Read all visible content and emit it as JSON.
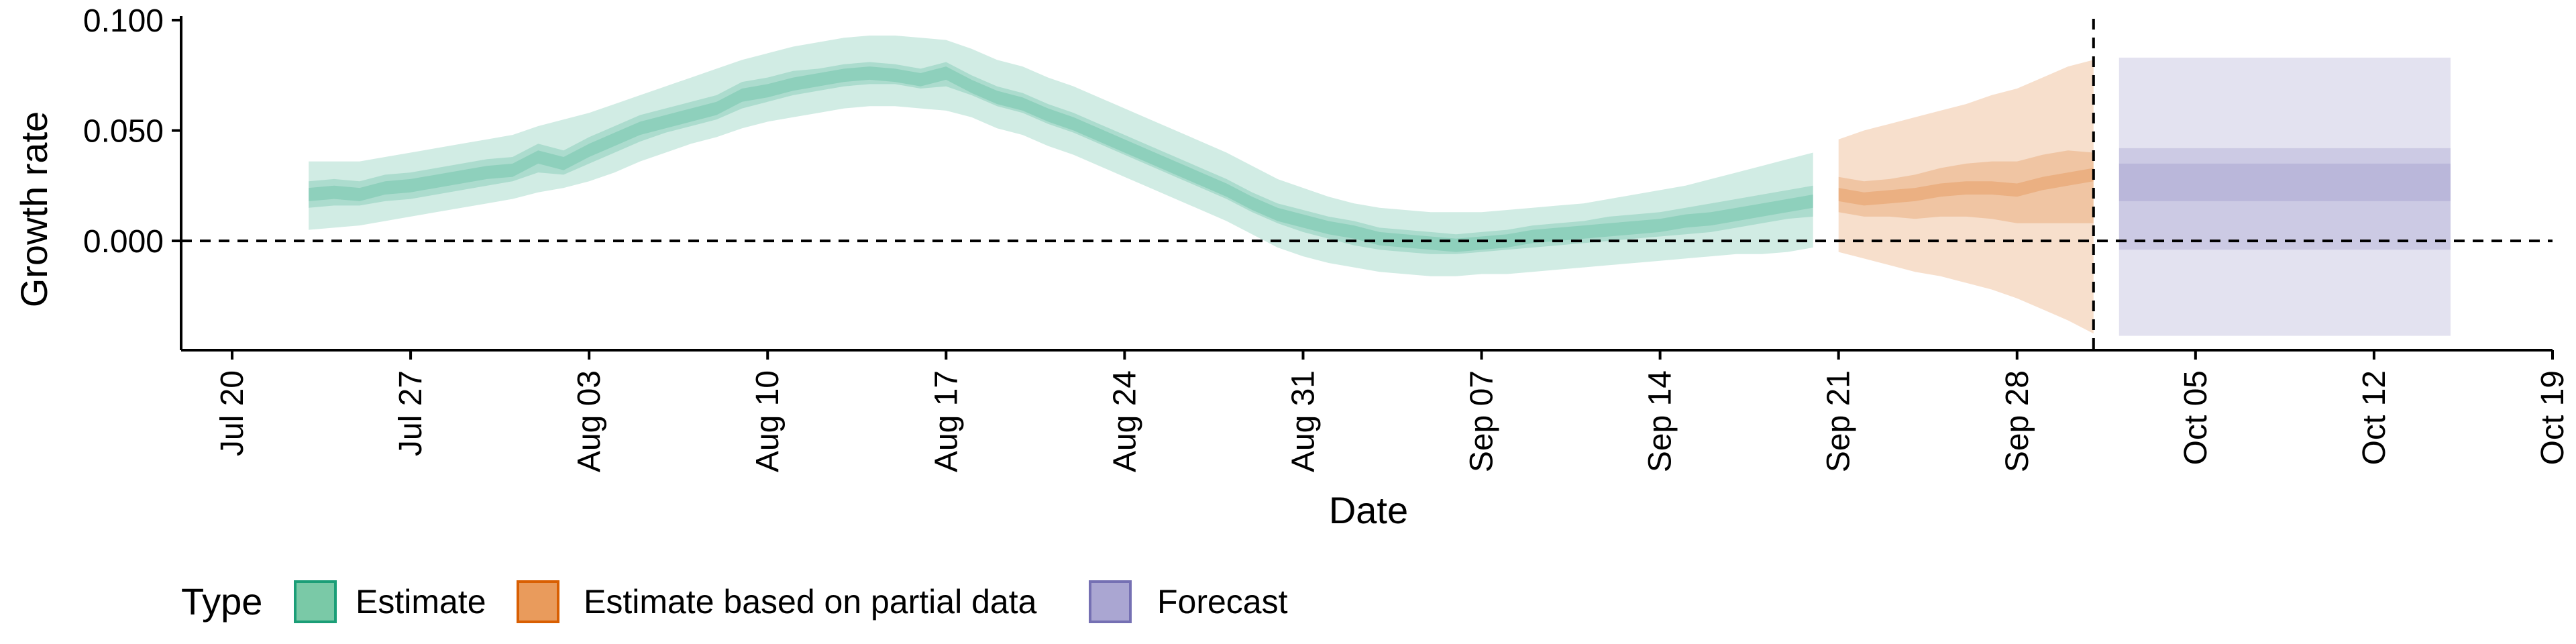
{
  "chart_data": {
    "type": "area",
    "xlabel": "Date",
    "ylabel": "Growth rate",
    "ylim": [
      -0.0495,
      0.1
    ],
    "xlim": [
      "2020-07-18",
      "2020-10-19"
    ],
    "y_ticks": [
      {
        "value": 0.0,
        "label": "0.000"
      },
      {
        "value": 0.05,
        "label": "0.050"
      },
      {
        "value": 0.1,
        "label": "0.100"
      }
    ],
    "x_ticks": [
      {
        "date": "2020-07-20",
        "label": "Jul 20"
      },
      {
        "date": "2020-07-27",
        "label": "Jul 27"
      },
      {
        "date": "2020-08-03",
        "label": "Aug 03"
      },
      {
        "date": "2020-08-10",
        "label": "Aug 10"
      },
      {
        "date": "2020-08-17",
        "label": "Aug 17"
      },
      {
        "date": "2020-08-24",
        "label": "Aug 24"
      },
      {
        "date": "2020-08-31",
        "label": "Aug 31"
      },
      {
        "date": "2020-09-07",
        "label": "Sep 07"
      },
      {
        "date": "2020-09-14",
        "label": "Sep 14"
      },
      {
        "date": "2020-09-21",
        "label": "Sep 21"
      },
      {
        "date": "2020-09-28",
        "label": "Sep 28"
      },
      {
        "date": "2020-10-05",
        "label": "Oct 05"
      },
      {
        "date": "2020-10-12",
        "label": "Oct 12"
      },
      {
        "date": "2020-10-19",
        "label": "Oct 19"
      }
    ],
    "reference_lines": {
      "horizontal_y": 0.0,
      "vertional_label": "",
      "vertical_date": "2020-10-01"
    },
    "legend": {
      "title": "Type",
      "position": "bottom",
      "entries": [
        {
          "label": "Estimate",
          "fill": "#7ac9a7",
          "border": "#1b9e77"
        },
        {
          "label": "Estimate based on partial data",
          "fill": "#e99b5c",
          "border": "#d95f02"
        },
        {
          "label": "Forecast",
          "fill": "#aaa6d2",
          "border": "#7570b3"
        }
      ]
    },
    "series": [
      {
        "name": "Estimate",
        "type": "ribbon",
        "color": "#1b9e77",
        "x": [
          "2020-07-23",
          "2020-07-24",
          "2020-07-25",
          "2020-07-26",
          "2020-07-27",
          "2020-07-28",
          "2020-07-29",
          "2020-07-30",
          "2020-07-31",
          "2020-08-01",
          "2020-08-02",
          "2020-08-03",
          "2020-08-04",
          "2020-08-05",
          "2020-08-06",
          "2020-08-07",
          "2020-08-08",
          "2020-08-09",
          "2020-08-10",
          "2020-08-11",
          "2020-08-12",
          "2020-08-13",
          "2020-08-14",
          "2020-08-15",
          "2020-08-16",
          "2020-08-17",
          "2020-08-18",
          "2020-08-19",
          "2020-08-20",
          "2020-08-21",
          "2020-08-22",
          "2020-08-23",
          "2020-08-24",
          "2020-08-25",
          "2020-08-26",
          "2020-08-27",
          "2020-08-28",
          "2020-08-29",
          "2020-08-30",
          "2020-08-31",
          "2020-09-01",
          "2020-09-02",
          "2020-09-03",
          "2020-09-04",
          "2020-09-05",
          "2020-09-06",
          "2020-09-07",
          "2020-09-08",
          "2020-09-09",
          "2020-09-10",
          "2020-09-11",
          "2020-09-12",
          "2020-09-13",
          "2020-09-14",
          "2020-09-15",
          "2020-09-16",
          "2020-09-17",
          "2020-09-18",
          "2020-09-19",
          "2020-09-20"
        ],
        "median": [
          0.021,
          0.022,
          0.021,
          0.024,
          0.025,
          0.027,
          0.029,
          0.031,
          0.032,
          0.038,
          0.035,
          0.041,
          0.046,
          0.051,
          0.054,
          0.057,
          0.06,
          0.066,
          0.068,
          0.071,
          0.073,
          0.075,
          0.076,
          0.075,
          0.073,
          0.076,
          0.07,
          0.065,
          0.062,
          0.057,
          0.053,
          0.048,
          0.043,
          0.038,
          0.033,
          0.028,
          0.023,
          0.017,
          0.012,
          0.009,
          0.006,
          0.004,
          0.001,
          0.0,
          -0.001,
          -0.002,
          -0.001,
          0.0,
          0.002,
          0.003,
          0.004,
          0.005,
          0.006,
          0.007,
          0.009,
          0.01,
          0.012,
          0.014,
          0.016,
          0.018
        ],
        "lower_50": [
          0.015,
          0.016,
          0.016,
          0.018,
          0.019,
          0.021,
          0.023,
          0.025,
          0.027,
          0.031,
          0.03,
          0.035,
          0.04,
          0.045,
          0.049,
          0.052,
          0.055,
          0.06,
          0.063,
          0.066,
          0.068,
          0.07,
          0.071,
          0.071,
          0.069,
          0.07,
          0.066,
          0.061,
          0.058,
          0.053,
          0.049,
          0.044,
          0.039,
          0.034,
          0.029,
          0.024,
          0.019,
          0.013,
          0.008,
          0.004,
          0.001,
          -0.002,
          -0.004,
          -0.005,
          -0.006,
          -0.006,
          -0.005,
          -0.004,
          -0.003,
          -0.002,
          -0.001,
          0.0,
          0.001,
          0.002,
          0.003,
          0.004,
          0.006,
          0.008,
          0.01,
          0.011
        ],
        "upper_50": [
          0.027,
          0.028,
          0.027,
          0.03,
          0.031,
          0.033,
          0.035,
          0.037,
          0.038,
          0.044,
          0.041,
          0.047,
          0.052,
          0.057,
          0.06,
          0.063,
          0.066,
          0.072,
          0.074,
          0.077,
          0.078,
          0.08,
          0.081,
          0.08,
          0.078,
          0.081,
          0.075,
          0.07,
          0.067,
          0.062,
          0.058,
          0.053,
          0.048,
          0.043,
          0.038,
          0.033,
          0.028,
          0.022,
          0.017,
          0.014,
          0.011,
          0.009,
          0.006,
          0.005,
          0.004,
          0.003,
          0.004,
          0.005,
          0.007,
          0.008,
          0.009,
          0.011,
          0.012,
          0.013,
          0.015,
          0.017,
          0.019,
          0.021,
          0.023,
          0.025
        ],
        "lower_90": [
          0.005,
          0.006,
          0.007,
          0.009,
          0.011,
          0.013,
          0.015,
          0.017,
          0.019,
          0.022,
          0.024,
          0.027,
          0.031,
          0.036,
          0.04,
          0.044,
          0.047,
          0.051,
          0.054,
          0.056,
          0.058,
          0.06,
          0.061,
          0.061,
          0.06,
          0.059,
          0.056,
          0.051,
          0.048,
          0.043,
          0.039,
          0.034,
          0.029,
          0.024,
          0.019,
          0.014,
          0.009,
          0.003,
          -0.003,
          -0.007,
          -0.01,
          -0.012,
          -0.014,
          -0.015,
          -0.016,
          -0.016,
          -0.015,
          -0.015,
          -0.014,
          -0.013,
          -0.012,
          -0.011,
          -0.01,
          -0.009,
          -0.008,
          -0.007,
          -0.006,
          -0.006,
          -0.005,
          -0.003
        ],
        "upper_90": [
          0.036,
          0.036,
          0.036,
          0.038,
          0.04,
          0.042,
          0.044,
          0.046,
          0.048,
          0.052,
          0.055,
          0.058,
          0.062,
          0.066,
          0.07,
          0.074,
          0.078,
          0.082,
          0.085,
          0.088,
          0.09,
          0.092,
          0.093,
          0.093,
          0.092,
          0.091,
          0.087,
          0.082,
          0.079,
          0.074,
          0.07,
          0.065,
          0.06,
          0.055,
          0.05,
          0.045,
          0.04,
          0.034,
          0.028,
          0.024,
          0.02,
          0.017,
          0.015,
          0.014,
          0.013,
          0.013,
          0.013,
          0.014,
          0.015,
          0.016,
          0.017,
          0.019,
          0.021,
          0.023,
          0.025,
          0.028,
          0.031,
          0.034,
          0.037,
          0.04
        ]
      },
      {
        "name": "Estimate based on partial data",
        "type": "ribbon",
        "color": "#d95f02",
        "x": [
          "2020-09-21",
          "2020-09-22",
          "2020-09-23",
          "2020-09-24",
          "2020-09-25",
          "2020-09-26",
          "2020-09-27",
          "2020-09-28",
          "2020-09-29",
          "2020-09-30",
          "2020-10-01"
        ],
        "median": [
          0.021,
          0.019,
          0.02,
          0.021,
          0.023,
          0.024,
          0.024,
          0.023,
          0.026,
          0.028,
          0.03
        ],
        "lower_50": [
          0.013,
          0.011,
          0.011,
          0.01,
          0.011,
          0.011,
          0.01,
          0.008,
          0.008,
          0.008,
          0.008
        ],
        "upper_50": [
          0.029,
          0.027,
          0.028,
          0.03,
          0.033,
          0.035,
          0.036,
          0.036,
          0.039,
          0.041,
          0.04
        ],
        "lower_90": [
          -0.005,
          -0.008,
          -0.011,
          -0.014,
          -0.016,
          -0.019,
          -0.022,
          -0.026,
          -0.031,
          -0.036,
          -0.042
        ],
        "upper_90": [
          0.046,
          0.05,
          0.053,
          0.056,
          0.059,
          0.062,
          0.066,
          0.069,
          0.074,
          0.079,
          0.082
        ]
      },
      {
        "name": "Forecast",
        "type": "ribbon",
        "color": "#7570b3",
        "x": [
          "2020-10-02",
          "2020-10-15"
        ],
        "median": [
          0.026,
          0.026
        ],
        "lower_20": [
          0.018,
          0.018
        ],
        "upper_20": [
          0.035,
          0.035
        ],
        "lower_50": [
          -0.004,
          -0.004
        ],
        "upper_50": [
          0.042,
          0.042
        ],
        "lower_90": [
          -0.043,
          -0.043
        ],
        "upper_90": [
          0.083,
          0.083
        ]
      }
    ]
  }
}
